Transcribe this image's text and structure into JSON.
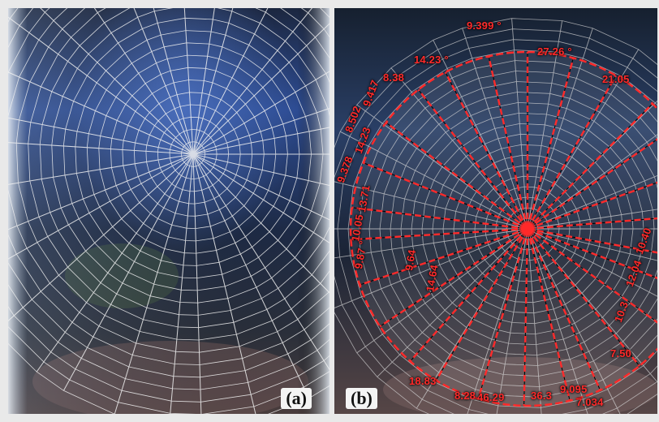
{
  "figure": {
    "panel_a_label": "(a)",
    "panel_b_label": "(b)",
    "angle_labels": [
      "9.399 °",
      "27.26 °",
      "21.05",
      "14.23 °",
      "8.38",
      "9.417",
      "8.502",
      "14.23",
      "9.378",
      "13.71",
      "10.05",
      "9.87 °",
      "9.64",
      "14.64",
      "18.83",
      "8.28",
      "46.29",
      "36.3",
      "9.095",
      "7.034",
      "7.50",
      "10.3",
      "12.04",
      "10.40"
    ],
    "colors": {
      "annotation_red": "#ff2a2a",
      "web_strand": "#f2f2f2",
      "background_dark": "#1a2540",
      "sky_blue": "#3a5fae"
    }
  }
}
